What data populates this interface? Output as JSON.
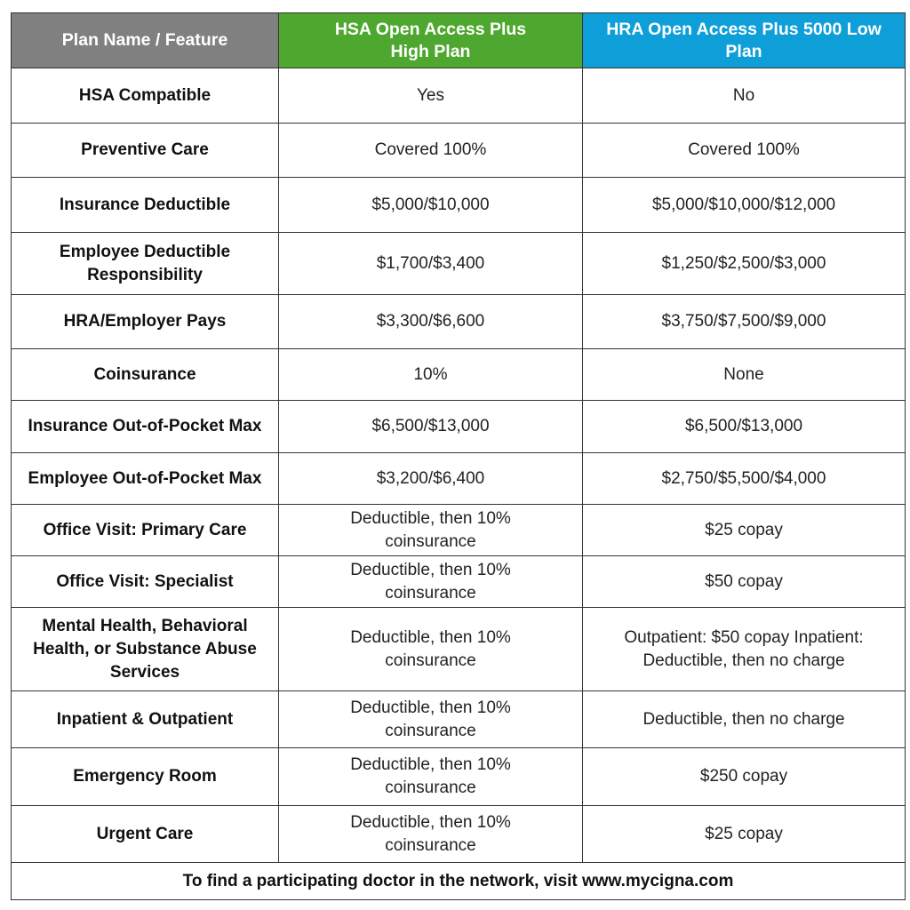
{
  "header": [
    "Plan Name / Feature",
    "HSA Open Access Plus High Plan",
    "HRA Open Access Plus 5000 Low Plan"
  ],
  "colors": {
    "header_gray": "#808080",
    "hsa_green": "#4ea72e",
    "hra_blue": "#0e9fd8"
  },
  "rows": [
    {
      "feature": "HSA Compatible",
      "hsa": "Yes",
      "hra": "No"
    },
    {
      "feature": "Preventive Care",
      "hsa": "Covered 100%",
      "hra": "Covered 100%"
    },
    {
      "feature": "Insurance Deductible",
      "hsa": "$5,000/$10,000",
      "hra": "$5,000/$10,000/$12,000"
    },
    {
      "feature": "Employee Deductible Responsibility",
      "hsa": "$1,700/$3,400",
      "hra": "$1,250/$2,500/$3,000"
    },
    {
      "feature": "HRA/Employer Pays",
      "hsa": "$3,300/$6,600",
      "hra": "$3,750/$7,500/$9,000"
    },
    {
      "feature": "Coinsurance",
      "hsa": "10%",
      "hra": "None"
    },
    {
      "feature": "Insurance Out-of-Pocket Max",
      "hsa": "$6,500/$13,000",
      "hra": "$6,500/$13,000"
    },
    {
      "feature": "Employee Out-of-Pocket Max",
      "hsa": "$3,200/$6,400",
      "hra": "$2,750/$5,500/$4,000"
    },
    {
      "feature": "Office Visit: Primary Care",
      "hsa": "Deductible, then 10% coinsurance",
      "hra": "$25 copay"
    },
    {
      "feature": "Office Visit: Specialist",
      "hsa": "Deductible, then 10% coinsurance",
      "hra": "$50 copay"
    },
    {
      "feature": "Mental Health, Behavioral Health, or Substance Abuse Services",
      "hsa": "Deductible, then 10% coinsurance",
      "hra": "Outpatient: $50 copay Inpatient: Deductible, then no charge"
    },
    {
      "feature": "Inpatient & Outpatient",
      "hsa": "Deductible, then 10% coinsurance",
      "hra": "Deductible, then no charge"
    },
    {
      "feature": "Emergency Room",
      "hsa": "Deductible, then 10% coinsurance",
      "hra": "$250 copay"
    },
    {
      "feature": "Urgent Care",
      "hsa": "Deductible, then 10% coinsurance",
      "hra": "$25 copay"
    }
  ],
  "footer": "To find a participating doctor in the network, visit www.mycigna.com"
}
